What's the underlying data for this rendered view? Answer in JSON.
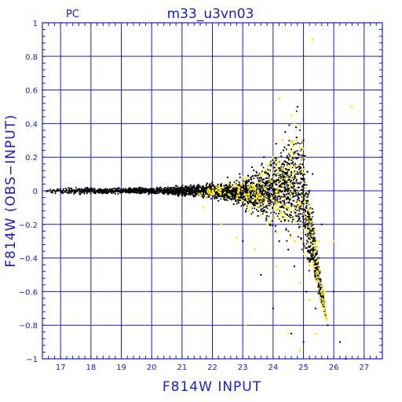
{
  "chart_data": {
    "type": "scatter",
    "title": "m33_u3vn03",
    "corner_label": "PC",
    "xlabel": "F814W INPUT",
    "ylabel": "F814W (OBS−INPUT)",
    "xlim": [
      16.4,
      27.6
    ],
    "ylim": [
      -1,
      1
    ],
    "x_ticks": [
      17,
      18,
      19,
      20,
      21,
      22,
      23,
      24,
      25,
      26,
      27
    ],
    "x_tick_labels": [
      "17",
      "18",
      "19",
      "20",
      "21",
      "22",
      "23",
      "24",
      "25",
      "26",
      "27"
    ],
    "y_ticks": [
      -1,
      -0.8,
      -0.6,
      -0.4,
      -0.2,
      0,
      0.2,
      0.4,
      0.6,
      0.8,
      1
    ],
    "y_tick_labels": [
      "−1",
      "−0.8",
      "−0.6",
      "−0.4",
      "−0.2",
      "0",
      "0.2",
      "0.4",
      "0.6",
      "0.8",
      "1"
    ],
    "grid": true,
    "colors": {
      "axis": "#1a1ad6",
      "grid": "#1a1ad6",
      "series_main": "#000000",
      "series_highlight": "#ffee00"
    },
    "series": [
      {
        "color": "#000000",
        "points": [
          [
            16.6,
            0.0
          ],
          [
            16.9,
            0.01
          ],
          [
            17.2,
            -0.01
          ],
          [
            17.5,
            0.0
          ],
          [
            17.8,
            0.01
          ],
          [
            18.1,
            -0.01
          ],
          [
            18.4,
            0.0
          ],
          [
            18.7,
            0.01
          ],
          [
            19.0,
            -0.01
          ],
          [
            19.3,
            0.0
          ],
          [
            19.6,
            0.02
          ],
          [
            19.9,
            -0.02
          ],
          [
            20.2,
            0.01
          ],
          [
            20.5,
            -0.01
          ],
          [
            20.8,
            0.03
          ],
          [
            21.1,
            -0.03
          ],
          [
            21.4,
            0.02
          ],
          [
            21.7,
            -0.04
          ],
          [
            22.0,
            0.05
          ],
          [
            22.2,
            -0.06
          ],
          [
            22.5,
            0.08
          ],
          [
            22.7,
            -0.08
          ],
          [
            22.9,
            0.1
          ],
          [
            23.1,
            -0.12
          ],
          [
            23.3,
            0.14
          ],
          [
            23.5,
            -0.15
          ],
          [
            23.7,
            0.2
          ],
          [
            23.9,
            -0.2
          ],
          [
            24.1,
            0.28
          ],
          [
            24.2,
            -0.3
          ],
          [
            24.4,
            0.35
          ],
          [
            24.5,
            -0.35
          ],
          [
            24.6,
            0.45
          ],
          [
            24.7,
            -0.45
          ],
          [
            24.8,
            0.5
          ],
          [
            24.9,
            -0.55
          ],
          [
            25.0,
            0.3
          ],
          [
            25.1,
            -0.6
          ],
          [
            25.3,
            0.1
          ],
          [
            25.4,
            -0.7
          ],
          [
            25.6,
            -0.2
          ],
          [
            25.8,
            -0.8
          ],
          [
            26.0,
            -0.6
          ],
          [
            26.2,
            -0.9
          ],
          [
            26.4,
            -1.0
          ],
          [
            23.0,
            -0.3
          ],
          [
            23.6,
            -0.5
          ],
          [
            24.0,
            -0.7
          ],
          [
            24.6,
            -0.85
          ],
          [
            25.0,
            -0.9
          ],
          [
            23.8,
            0.05
          ],
          [
            24.4,
            0.1
          ],
          [
            24.9,
            0.6
          ],
          [
            25.2,
            0.0
          ],
          [
            25.5,
            -0.4
          ]
        ]
      },
      {
        "color": "#ffee00",
        "points": [
          [
            21.7,
            -0.1
          ],
          [
            22.3,
            -0.2
          ],
          [
            22.8,
            -0.28
          ],
          [
            23.0,
            0.08
          ],
          [
            23.2,
            -0.12
          ],
          [
            23.4,
            -0.35
          ],
          [
            23.6,
            0.1
          ],
          [
            23.8,
            -0.2
          ],
          [
            24.0,
            0.2
          ],
          [
            24.1,
            -0.45
          ],
          [
            24.3,
            0.3
          ],
          [
            24.4,
            -0.1
          ],
          [
            24.6,
            0.45
          ],
          [
            24.7,
            -0.3
          ],
          [
            24.8,
            0.15
          ],
          [
            24.9,
            -0.55
          ],
          [
            25.0,
            0.25
          ],
          [
            25.1,
            -0.25
          ],
          [
            25.2,
            -0.65
          ],
          [
            25.3,
            0.9
          ],
          [
            25.5,
            -0.3
          ],
          [
            25.7,
            -0.6
          ],
          [
            26.0,
            -0.3
          ],
          [
            26.6,
            0.5
          ],
          [
            24.2,
            0.55
          ],
          [
            23.1,
            -0.8
          ],
          [
            24.5,
            -0.85
          ],
          [
            24.9,
            -0.95
          ],
          [
            25.4,
            -0.85
          ]
        ]
      }
    ]
  }
}
